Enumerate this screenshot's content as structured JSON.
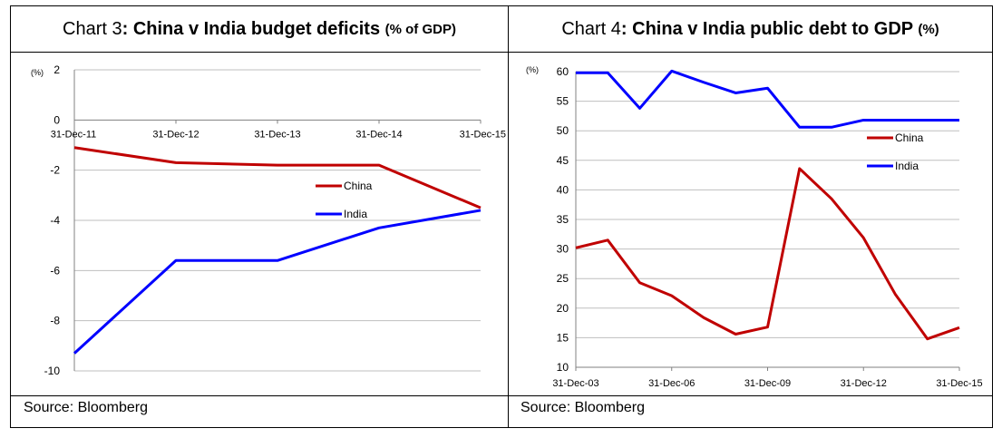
{
  "chart_data": [
    {
      "type": "line",
      "title_prefix": "Chart 3",
      "title_main": ": China v India budget deficits ",
      "title_unit": "(% of GDP)",
      "unit_label": "(%)",
      "ylim": [
        -10,
        2
      ],
      "yticks": [
        "2",
        "0",
        "-2",
        "-4",
        "-6",
        "-8",
        "-10"
      ],
      "ytick_values": [
        2,
        0,
        -2,
        -4,
        -6,
        -8,
        -10
      ],
      "x_tick_labels": [
        "31-Dec-11",
        "31-Dec-12",
        "31-Dec-13",
        "31-Dec-14",
        "31-Dec-15"
      ],
      "x": [
        0,
        1,
        2,
        3,
        4
      ],
      "series": [
        {
          "name": "China",
          "color": "#c00000",
          "values": [
            -1.1,
            -1.7,
            -1.8,
            -1.8,
            -3.5
          ]
        },
        {
          "name": "India",
          "color": "#0000ff",
          "values": [
            -9.3,
            -5.6,
            -5.6,
            -4.3,
            -3.6
          ]
        }
      ],
      "source": "Source: Bloomberg"
    },
    {
      "type": "line",
      "title_prefix": "Chart 4",
      "title_main": ": China v India public debt to GDP ",
      "title_unit": "(%)",
      "unit_label": "(%)",
      "ylim": [
        10,
        60
      ],
      "yticks": [
        "60",
        "55",
        "50",
        "45",
        "40",
        "35",
        "30",
        "25",
        "20",
        "15",
        "10"
      ],
      "ytick_values": [
        60,
        55,
        50,
        45,
        40,
        35,
        30,
        25,
        20,
        15,
        10
      ],
      "x_tick_labels": [
        "31-Dec-03",
        "31-Dec-06",
        "31-Dec-09",
        "31-Dec-12",
        "31-Dec-15"
      ],
      "x_tick_positions": [
        2003,
        2006,
        2009,
        2012,
        2015
      ],
      "x": [
        2003,
        2004,
        2005,
        2006,
        2007,
        2008,
        2009,
        2010,
        2011,
        2012,
        2013,
        2014,
        2015
      ],
      "series": [
        {
          "name": "China",
          "color": "#c00000",
          "values": [
            30.2,
            31.5,
            24.3,
            22.1,
            18.4,
            15.6,
            16.8,
            43.6,
            38.5,
            31.9,
            22.3,
            14.8,
            16.7
          ]
        },
        {
          "name": "India",
          "color": "#0000ff",
          "values": [
            59.8,
            59.8,
            53.8,
            60.1,
            58.2,
            56.4,
            57.2,
            50.6,
            50.6,
            51.8,
            51.8,
            51.8,
            51.8
          ]
        }
      ],
      "source": "Source: Bloomberg"
    }
  ]
}
